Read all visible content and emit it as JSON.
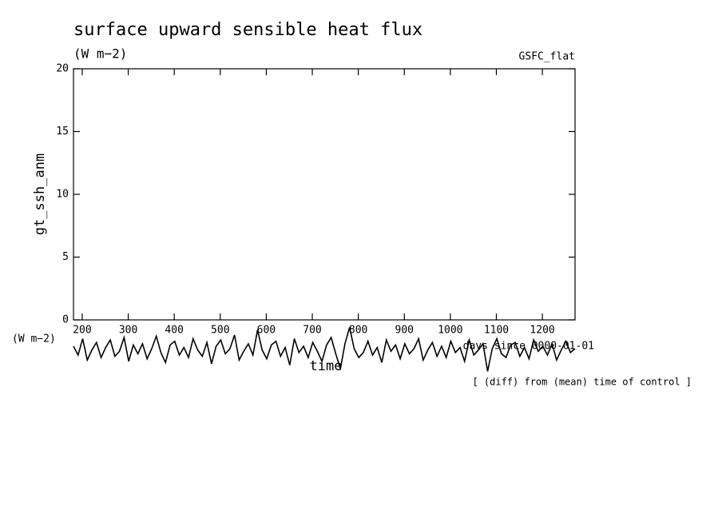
{
  "chart_data": {
    "type": "line",
    "title": "surface upward sensible heat flux",
    "subtitle": "(W m−2)",
    "source": "GSFC_flat",
    "y_label": "gt_ssh_anm",
    "y_unit": "(W m−2)",
    "x_label": "time",
    "x_unit": "days since 0000-01-01",
    "note": "[ (diff) from (mean) time of control ]",
    "xlim": [
      181,
      1271
    ],
    "xticks": [
      200,
      300,
      400,
      500,
      600,
      700,
      800,
      900,
      1000,
      1100,
      1200
    ],
    "ylim": [
      0,
      20
    ],
    "yticks": [
      0,
      5,
      10,
      15,
      20
    ],
    "grid": false,
    "color": "#000000",
    "x": [
      181,
      191,
      201,
      211,
      221,
      231,
      241,
      251,
      261,
      271,
      281,
      291,
      301,
      311,
      321,
      331,
      341,
      351,
      361,
      371,
      381,
      391,
      401,
      411,
      421,
      431,
      441,
      451,
      461,
      471,
      481,
      491,
      501,
      511,
      521,
      531,
      541,
      551,
      561,
      571,
      581,
      591,
      601,
      611,
      621,
      631,
      641,
      651,
      661,
      671,
      681,
      691,
      701,
      711,
      721,
      731,
      741,
      751,
      761,
      771,
      781,
      791,
      801,
      811,
      821,
      831,
      841,
      851,
      861,
      871,
      881,
      891,
      901,
      911,
      921,
      931,
      941,
      951,
      961,
      971,
      981,
      991,
      1001,
      1011,
      1021,
      1031,
      1041,
      1051,
      1061,
      1071,
      1081,
      1091,
      1101,
      1111,
      1121,
      1131,
      1141,
      1151,
      1161,
      1171,
      1181,
      1191,
      1201,
      1211,
      1221,
      1231,
      1241,
      1251,
      1261,
      1271
    ],
    "values": [
      -2.1,
      -2.8,
      -1.5,
      -3.2,
      -2.4,
      -1.8,
      -3.0,
      -2.2,
      -1.6,
      -2.9,
      -2.5,
      -1.4,
      -3.3,
      -2.0,
      -2.7,
      -1.9,
      -3.1,
      -2.3,
      -1.3,
      -2.6,
      -3.4,
      -2.0,
      -1.7,
      -2.8,
      -2.2,
      -3.0,
      -1.5,
      -2.4,
      -2.9,
      -1.8,
      -3.5,
      -2.1,
      -1.6,
      -2.7,
      -2.3,
      -1.2,
      -3.2,
      -2.5,
      -1.9,
      -2.8,
      -0.8,
      -2.4,
      -3.1,
      -2.0,
      -1.7,
      -2.9,
      -2.2,
      -3.6,
      -1.5,
      -2.6,
      -2.1,
      -3.0,
      -1.8,
      -2.5,
      -3.3,
      -2.0,
      -1.4,
      -2.7,
      -3.9,
      -1.9,
      -0.6,
      -2.3,
      -3.0,
      -2.6,
      -1.7,
      -2.8,
      -2.2,
      -3.4,
      -1.6,
      -2.5,
      -2.0,
      -3.1,
      -1.9,
      -2.7,
      -2.3,
      -1.5,
      -3.2,
      -2.4,
      -1.8,
      -2.9,
      -2.1,
      -3.0,
      -1.7,
      -2.6,
      -2.2,
      -3.3,
      -1.6,
      -2.8,
      -2.4,
      -1.9,
      -4.1,
      -2.3,
      -1.5,
      -2.7,
      -3.0,
      -2.0,
      -1.8,
      -2.9,
      -2.2,
      -3.1,
      -1.6,
      -2.5,
      -2.1,
      -2.8,
      -1.9,
      -3.2,
      -2.4,
      -1.7,
      -2.6,
      -2.3
    ]
  }
}
